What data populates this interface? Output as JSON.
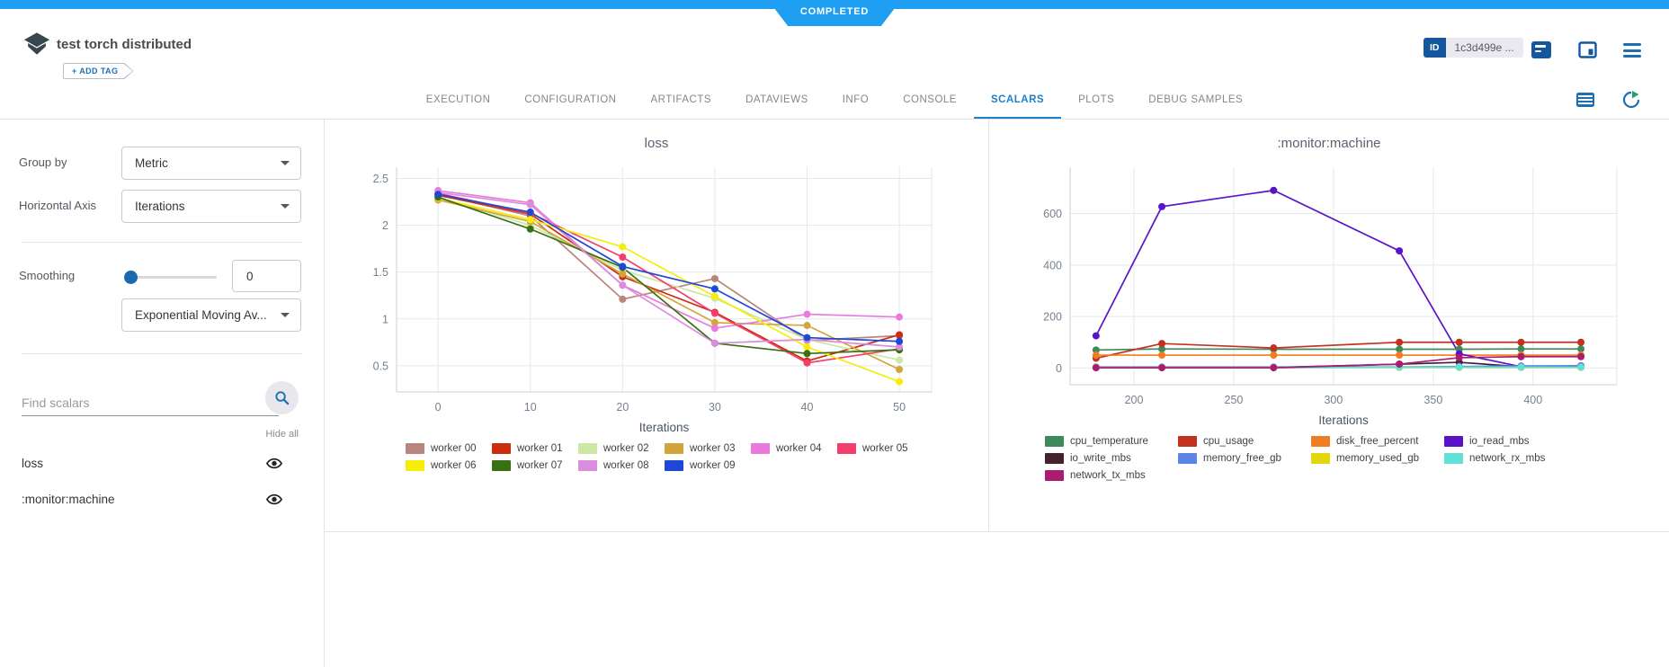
{
  "colors": {
    "topbar_blue": "#1e9ff2",
    "accent_blue": "#1a6fb5",
    "active_tab_blue": "#1b7fc9",
    "id_badge_bg": "#15579e"
  },
  "status_badge": "COMPLETED",
  "header": {
    "title": "test torch distributed",
    "add_tag": "+ ADD TAG",
    "id_label": "ID",
    "id_value": "1c3d499e ..."
  },
  "tabs": [
    {
      "label": "EXECUTION",
      "active": false
    },
    {
      "label": "CONFIGURATION",
      "active": false
    },
    {
      "label": "ARTIFACTS",
      "active": false
    },
    {
      "label": "DATAVIEWS",
      "active": false
    },
    {
      "label": "INFO",
      "active": false
    },
    {
      "label": "CONSOLE",
      "active": false
    },
    {
      "label": "SCALARS",
      "active": true
    },
    {
      "label": "PLOTS",
      "active": false
    },
    {
      "label": "DEBUG SAMPLES",
      "active": false
    }
  ],
  "sidebar": {
    "group_by_label": "Group by",
    "group_by_value": "Metric",
    "horizontal_axis_label": "Horizontal Axis",
    "horizontal_axis_value": "Iterations",
    "smoothing_label": "Smoothing",
    "smoothing_value": "0",
    "smoothing_type_value": "Exponential Moving Av...",
    "find_placeholder": "Find scalars",
    "hide_all_label": "Hide all",
    "scalars": [
      {
        "label": "loss"
      },
      {
        "label": ":monitor:machine"
      }
    ]
  },
  "chart_data": [
    {
      "type": "line",
      "title": "loss",
      "xlabel": "Iterations",
      "grid": true,
      "legend_position": "bottom",
      "x": [
        0,
        10,
        20,
        30,
        40,
        50
      ],
      "xticks": [
        0,
        10,
        20,
        30,
        40,
        50
      ],
      "yticks": [
        0.5,
        1,
        1.5,
        2,
        2.5
      ],
      "xlim": [
        -4.5,
        53.5
      ],
      "ylim": [
        0.22,
        2.62
      ],
      "series": [
        {
          "name": "worker 00",
          "color": "#b8857d",
          "values": [
            2.33,
            2.1,
            1.21,
            1.43,
            0.77,
            0.82
          ]
        },
        {
          "name": "worker 01",
          "color": "#cc2d10",
          "values": [
            2.32,
            2.12,
            1.45,
            1.07,
            0.55,
            0.83
          ]
        },
        {
          "name": "worker 02",
          "color": "#cbe8a5",
          "values": [
            2.3,
            2.0,
            1.52,
            1.22,
            0.78,
            0.56
          ]
        },
        {
          "name": "worker 03",
          "color": "#d2a43b",
          "values": [
            2.27,
            2.04,
            1.48,
            0.96,
            0.93,
            0.46
          ]
        },
        {
          "name": "worker 04",
          "color": "#ea79de",
          "values": [
            2.37,
            2.24,
            1.36,
            0.9,
            1.05,
            1.02
          ]
        },
        {
          "name": "worker 05",
          "color": "#f43f6e",
          "values": [
            2.34,
            2.13,
            1.66,
            1.06,
            0.53,
            0.68
          ]
        },
        {
          "name": "worker 06",
          "color": "#f6ed0a",
          "values": [
            2.29,
            2.06,
            1.77,
            1.24,
            0.7,
            0.33
          ]
        },
        {
          "name": "worker 07",
          "color": "#387012",
          "values": [
            2.3,
            1.96,
            1.55,
            0.74,
            0.63,
            0.67
          ]
        },
        {
          "name": "worker 08",
          "color": "#d98ddb",
          "values": [
            2.35,
            2.22,
            1.36,
            0.74,
            0.78,
            0.7
          ]
        },
        {
          "name": "worker 09",
          "color": "#1f48d7",
          "values": [
            2.33,
            2.14,
            1.56,
            1.32,
            0.8,
            0.76
          ]
        }
      ]
    },
    {
      "type": "line",
      "title": ":monitor:machine",
      "xlabel": "Iterations",
      "grid": true,
      "legend_position": "bottom",
      "x": [
        181,
        214,
        270,
        333,
        363,
        394,
        424
      ],
      "xticks": [
        200,
        250,
        300,
        350,
        400
      ],
      "yticks": [
        0,
        200,
        400,
        600
      ],
      "xlim": [
        168,
        442
      ],
      "ylim": [
        -65,
        780
      ],
      "series": [
        {
          "name": "cpu_temperature",
          "color": "#3f8a5d",
          "values": [
            70,
            74,
            73,
            73,
            73,
            74,
            74
          ]
        },
        {
          "name": "cpu_usage",
          "color": "#c3321f",
          "values": [
            38,
            95,
            78,
            100,
            100,
            100,
            100
          ]
        },
        {
          "name": "disk_free_percent",
          "color": "#f07d21",
          "values": [
            50,
            50,
            50,
            50,
            50,
            50,
            50
          ]
        },
        {
          "name": "io_read_mbs",
          "color": "#5b13c9",
          "values": [
            125,
            627,
            690,
            455,
            55,
            5,
            8
          ]
        },
        {
          "name": "io_write_mbs",
          "color": "#45222d",
          "values": [
            2,
            2,
            2,
            15,
            22,
            5,
            5
          ]
        },
        {
          "name": "memory_free_gb",
          "color": "#5c85e6",
          "values": [
            4,
            4,
            4,
            4,
            6,
            8,
            9
          ]
        },
        {
          "name": "memory_used_gb",
          "color": "#e3d60b",
          "values": [
            2,
            2,
            2,
            2,
            2,
            2,
            2
          ]
        },
        {
          "name": "network_rx_mbs",
          "color": "#63e0d5",
          "values": [
            1,
            1,
            1,
            3,
            3,
            3,
            3
          ]
        },
        {
          "name": "network_tx_mbs",
          "color": "#ad1a71",
          "values": [
            1,
            1,
            1,
            15,
            40,
            44,
            44
          ]
        }
      ]
    }
  ]
}
